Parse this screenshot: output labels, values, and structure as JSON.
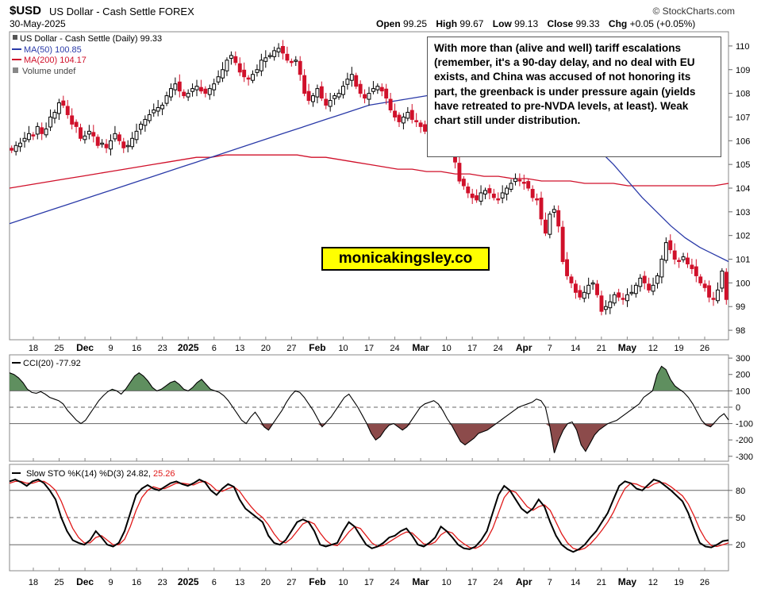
{
  "header": {
    "symbol": "$USD",
    "name": "US Dollar - Cash Settle FOREX",
    "date": "30-May-2025",
    "brand": "© StockCharts.com",
    "open_label": "Open",
    "open": "99.25",
    "high_label": "High",
    "high": "99.67",
    "low_label": "Low",
    "low": "99.13",
    "close_label": "Close",
    "close": "99.33",
    "chg_label": "Chg",
    "chg": "+0.05 (+0.05%)"
  },
  "legend": {
    "price": "US Dollar - Cash Settle (Daily) 99.33",
    "ma50": "MA(50) 100.85",
    "ma200": "MA(200) 104.17",
    "volume": "Volume undef"
  },
  "annotation": "With more than (alive and well) tariff escalations (remember, it's a 90-day delay, and no deal with EU exists, and China was accused of not honoring its part, the greenback is under pressure again (yields have retreated to pre-NVDA levels, at least). Weak chart still under distribution.",
  "watermark": "monicakingsley.co",
  "colors": {
    "up": "#ffffff",
    "down": "#d0102a",
    "ma50": "#2a3aa8",
    "ma200": "#d0102a",
    "fill_pos": "#5f8f5f",
    "fill_neg": "#8c4b4b",
    "stoch_d": "#e01a1a"
  },
  "chart_data": [
    {
      "type": "candlestick",
      "title": "US Dollar - Cash Settle (Daily) 99.33",
      "x_tick_labels": [
        "18",
        "25",
        "Dec",
        "9",
        "16",
        "23",
        "2025",
        "6",
        "13",
        "20",
        "27",
        "Feb",
        "10",
        "17",
        "24",
        "Mar",
        "10",
        "17",
        "24",
        "Apr",
        "7",
        "14",
        "21",
        "May",
        "12",
        "19",
        "26"
      ],
      "ylim": [
        97.6,
        110.6
      ],
      "y_ticks": [
        98,
        99,
        100,
        101,
        102,
        103,
        104,
        105,
        106,
        107,
        108,
        109,
        110
      ],
      "close_series": [
        105.6,
        105.8,
        105.9,
        106.1,
        106.3,
        106.2,
        106.6,
        106.3,
        106.5,
        107.0,
        107.2,
        107.6,
        107.5,
        107.1,
        106.7,
        106.6,
        106.1,
        106.2,
        106.4,
        106.2,
        105.8,
        105.9,
        105.7,
        106.0,
        106.3,
        106.0,
        105.7,
        105.8,
        106.1,
        106.4,
        106.7,
        106.9,
        107.1,
        107.3,
        107.4,
        107.5,
        107.9,
        108.2,
        108.4,
        108.1,
        107.9,
        108.0,
        108.2,
        108.3,
        108.1,
        108.0,
        108.2,
        108.4,
        108.7,
        109.0,
        109.4,
        109.6,
        109.3,
        108.9,
        108.7,
        108.6,
        108.8,
        109.0,
        109.4,
        109.5,
        109.6,
        109.8,
        109.9,
        109.7,
        109.4,
        109.3,
        109.4,
        108.8,
        108.0,
        107.7,
        107.9,
        108.2,
        107.8,
        107.5,
        107.7,
        107.9,
        108.0,
        108.3,
        108.6,
        108.8,
        108.3,
        108.0,
        107.8,
        108.0,
        108.2,
        108.3,
        108.1,
        107.8,
        107.3,
        107.0,
        106.8,
        107.0,
        107.2,
        106.9,
        106.8,
        106.6,
        106.4,
        106.9,
        107.4,
        107.2,
        106.5,
        106.3,
        105.9,
        105.1,
        104.3,
        104.1,
        103.8,
        103.6,
        103.5,
        103.8,
        103.9,
        103.8,
        103.6,
        103.5,
        103.8,
        104.0,
        104.2,
        104.4,
        104.3,
        104.2,
        104.0,
        103.6,
        103.5,
        102.7,
        102.1,
        102.9,
        103.1,
        102.4,
        100.9,
        100.3,
        100.0,
        99.6,
        99.4,
        99.6,
        99.9,
        100.0,
        99.5,
        98.8,
        99.0,
        99.2,
        99.5,
        99.4,
        99.3,
        99.5,
        99.6,
        99.9,
        100.2,
        100.0,
        99.7,
        99.9,
        100.3,
        101.0,
        101.7,
        101.4,
        101.0,
        100.9,
        101.1,
        100.8,
        100.6,
        100.3,
        100.0,
        99.8,
        99.4,
        99.3,
        99.7,
        100.5,
        99.3
      ],
      "ma50_series": [
        102.5,
        102.7,
        102.9,
        103.1,
        103.3,
        103.5,
        103.7,
        103.9,
        104.1,
        104.3,
        104.5,
        104.7,
        104.9,
        105.1,
        105.3,
        105.5,
        105.7,
        105.9,
        106.1,
        106.3,
        106.5,
        106.7,
        106.9,
        107.1,
        107.3,
        107.5,
        107.6,
        107.7,
        107.8,
        107.9,
        108.0,
        108.0,
        108.0,
        107.9,
        107.8,
        107.6,
        107.4,
        107.2,
        107.0,
        106.6,
        106.1,
        105.6,
        105.0,
        104.3,
        103.6,
        103.0,
        102.4,
        101.9,
        101.5,
        101.2,
        100.9
      ],
      "ma200_series": [
        104.0,
        104.1,
        104.2,
        104.3,
        104.4,
        104.5,
        104.6,
        104.7,
        104.8,
        104.9,
        105.0,
        105.1,
        105.2,
        105.3,
        105.3,
        105.4,
        105.4,
        105.4,
        105.4,
        105.4,
        105.4,
        105.3,
        105.3,
        105.2,
        105.1,
        105.0,
        104.9,
        104.8,
        104.8,
        104.7,
        104.7,
        104.6,
        104.6,
        104.5,
        104.5,
        104.4,
        104.4,
        104.3,
        104.3,
        104.3,
        104.2,
        104.2,
        104.2,
        104.1,
        104.1,
        104.1,
        104.1,
        104.1,
        104.1,
        104.1,
        104.2
      ]
    },
    {
      "type": "area",
      "title": "CCI(20) -77.92",
      "ylim": [
        -330,
        320
      ],
      "y_ticks": [
        -300,
        -200,
        -100,
        0,
        100,
        200,
        300
      ],
      "bands": [
        100,
        -100
      ],
      "values": [
        210,
        200,
        180,
        150,
        110,
        90,
        85,
        95,
        80,
        60,
        50,
        40,
        20,
        -20,
        -50,
        -80,
        -100,
        -80,
        -40,
        0,
        40,
        70,
        95,
        110,
        100,
        80,
        110,
        150,
        190,
        210,
        190,
        160,
        120,
        100,
        110,
        130,
        150,
        160,
        140,
        110,
        100,
        120,
        150,
        170,
        140,
        110,
        100,
        90,
        70,
        40,
        0,
        -40,
        -80,
        -100,
        -60,
        -30,
        -70,
        -120,
        -140,
        -100,
        -60,
        -20,
        30,
        70,
        100,
        90,
        60,
        20,
        -20,
        -70,
        -120,
        -90,
        -60,
        -20,
        20,
        60,
        80,
        40,
        0,
        -50,
        -100,
        -160,
        -200,
        -180,
        -140,
        -110,
        -100,
        -120,
        -140,
        -120,
        -80,
        -40,
        0,
        20,
        30,
        40,
        20,
        -20,
        -70,
        -110,
        -160,
        -210,
        -230,
        -210,
        -190,
        -160,
        -150,
        -140,
        -120,
        -100,
        -80,
        -60,
        -40,
        -20,
        0,
        10,
        20,
        30,
        50,
        40,
        0,
        -120,
        -280,
        -200,
        -140,
        -100,
        -90,
        -140,
        -230,
        -270,
        -220,
        -170,
        -140,
        -120,
        -100,
        -90,
        -80,
        -60,
        -40,
        -20,
        0,
        20,
        60,
        80,
        100,
        200,
        250,
        230,
        170,
        130,
        110,
        90,
        60,
        20,
        -30,
        -80,
        -110,
        -120,
        -90,
        -60,
        -40,
        -78
      ]
    },
    {
      "type": "line",
      "title": "Slow STO %K(14) %D(3) 24.82, 25.26",
      "ylim": [
        0,
        100
      ],
      "y_ticks": [
        20,
        50,
        80
      ],
      "bands": [
        80,
        50,
        20
      ],
      "series": [
        {
          "name": "%K(14)",
          "value": "24.82",
          "values": [
            90,
            92,
            89,
            85,
            90,
            92,
            88,
            80,
            70,
            50,
            35,
            25,
            22,
            20,
            25,
            35,
            28,
            20,
            18,
            22,
            35,
            55,
            75,
            82,
            86,
            82,
            80,
            84,
            88,
            90,
            87,
            85,
            88,
            92,
            89,
            80,
            75,
            82,
            87,
            84,
            70,
            60,
            55,
            50,
            45,
            30,
            22,
            20,
            25,
            35,
            45,
            48,
            45,
            35,
            20,
            18,
            20,
            22,
            35,
            45,
            40,
            30,
            20,
            16,
            18,
            22,
            28,
            30,
            35,
            38,
            30,
            20,
            18,
            22,
            28,
            40,
            35,
            28,
            20,
            16,
            15,
            18,
            25,
            35,
            55,
            75,
            85,
            80,
            70,
            60,
            55,
            60,
            70,
            62,
            45,
            30,
            20,
            15,
            12,
            15,
            20,
            28,
            35,
            45,
            55,
            70,
            85,
            90,
            88,
            82,
            80,
            86,
            92,
            90,
            85,
            80,
            74,
            68,
            55,
            38,
            22,
            18,
            17,
            20,
            24,
            25
          ]
        },
        {
          "name": "%D(3)",
          "value": "25.26",
          "values": [
            88,
            90,
            90,
            88,
            88,
            90,
            90,
            86,
            80,
            68,
            52,
            38,
            28,
            22,
            22,
            28,
            30,
            25,
            20,
            20,
            26,
            40,
            58,
            72,
            80,
            84,
            82,
            82,
            85,
            88,
            88,
            87,
            86,
            89,
            90,
            86,
            80,
            79,
            82,
            84,
            79,
            70,
            62,
            55,
            50,
            42,
            32,
            24,
            22,
            27,
            35,
            43,
            46,
            43,
            33,
            25,
            20,
            19,
            26,
            34,
            40,
            38,
            30,
            22,
            18,
            19,
            23,
            27,
            31,
            34,
            33,
            27,
            21,
            20,
            23,
            31,
            35,
            33,
            26,
            21,
            17,
            16,
            19,
            26,
            38,
            55,
            72,
            80,
            78,
            70,
            62,
            58,
            62,
            64,
            58,
            45,
            32,
            22,
            16,
            14,
            16,
            21,
            28,
            36,
            45,
            56,
            70,
            82,
            88,
            87,
            84,
            83,
            87,
            89,
            88,
            84,
            79,
            74,
            65,
            52,
            37,
            26,
            19,
            18,
            20,
            22
          ]
        }
      ]
    }
  ]
}
